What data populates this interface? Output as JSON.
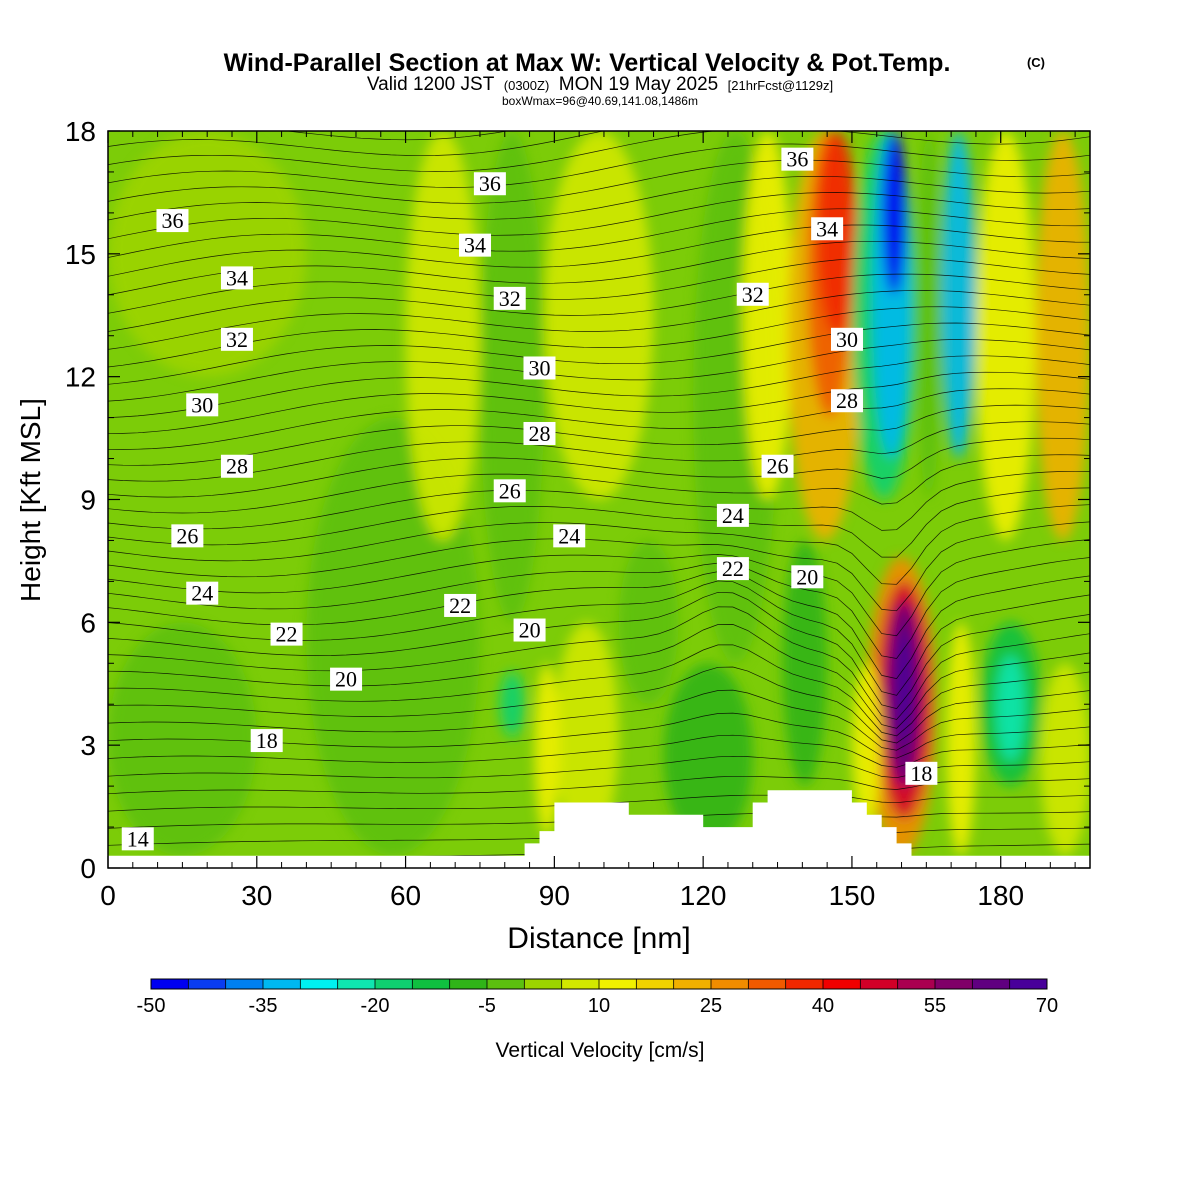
{
  "header": {
    "title": "Wind-Parallel Section at Max W: Vertical Velocity & Pot.Temp.",
    "title_mark": "(C)",
    "valid_prefix": "Valid 1200 JST",
    "valid_zulu": "(0300Z)",
    "valid_date": "MON 19 May 2025",
    "forecast_tag": "[21hrFcst@1129z]",
    "box_info": "boxWmax=96@40.69,141.08,1486m"
  },
  "chart_data": {
    "type": "heatmap",
    "title": "Wind-Parallel Section at Max W: Vertical Velocity & Pot.Temp.",
    "xlabel": "Distance [nm]",
    "ylabel": "Height [Kft MSL]",
    "xlim": [
      0,
      198
    ],
    "ylim": [
      0,
      18
    ],
    "x_ticks": [
      "0",
      "30",
      "60",
      "90",
      "120",
      "150",
      "180"
    ],
    "x_tick_values": [
      0,
      30,
      60,
      90,
      120,
      150,
      180
    ],
    "y_ticks": [
      "0",
      "3",
      "6",
      "9",
      "12",
      "15",
      "18"
    ],
    "y_tick_values": [
      0,
      3,
      6,
      9,
      12,
      15,
      18
    ],
    "colorbar": {
      "label": "Vertical Velocity [cm/s]",
      "min": -50,
      "max": 70,
      "step": 5,
      "tick_labels": [
        "-50",
        "-35",
        "-20",
        "-5",
        "10",
        "25",
        "40",
        "55",
        "70"
      ],
      "tick_values": [
        -50,
        -35,
        -20,
        -5,
        10,
        25,
        40,
        55,
        70
      ],
      "colors": [
        "#0000f0",
        "#0a3cf0",
        "#0080f0",
        "#00b8f0",
        "#00f0f0",
        "#10e6b0",
        "#10d070",
        "#10c040",
        "#30b418",
        "#5cc010",
        "#9cd400",
        "#d2e800",
        "#f0f000",
        "#f0d200",
        "#f0b000",
        "#f08c00",
        "#f05a00",
        "#f02800",
        "#f00000",
        "#d20028",
        "#aa0050",
        "#800068",
        "#600080",
        "#48009a"
      ]
    },
    "wind_velocity_features": [
      {
        "name": "downdraft core",
        "x": [
          154,
          173
        ],
        "z": [
          8.5,
          18
        ],
        "w_min": -50
      },
      {
        "name": "updraft core",
        "x": [
          153,
          167
        ],
        "z": [
          0.3,
          7.6
        ],
        "w_max": 70
      },
      {
        "name": "updraft band",
        "x": [
          137,
          152
        ],
        "z": [
          9,
          18
        ],
        "w_max": 35
      },
      {
        "name": "downdraft pocket",
        "x": [
          176,
          188
        ],
        "z": [
          2,
          6
        ],
        "w_min": -25
      },
      {
        "name": "downdraft pocket",
        "x": [
          79,
          84
        ],
        "z": [
          3.2,
          4.8
        ],
        "w_min": -20
      }
    ],
    "terrain": {
      "x": [
        0,
        84,
        84,
        87,
        87,
        90,
        90,
        105,
        105,
        120,
        120,
        130,
        130,
        133,
        133,
        150,
        150,
        153,
        153,
        156,
        156,
        159,
        159,
        162,
        162,
        198
      ],
      "z": [
        0.3,
        0.3,
        0.6,
        0.6,
        0.9,
        0.9,
        1.6,
        1.6,
        1.3,
        1.3,
        1.0,
        1.0,
        1.6,
        1.6,
        1.9,
        1.9,
        1.6,
        1.6,
        1.3,
        1.3,
        1.0,
        1.0,
        0.6,
        0.6,
        0.3,
        0.3
      ]
    },
    "potential_temperature_labels": [
      {
        "text": "14",
        "x": 6,
        "z": 0.7
      },
      {
        "text": "18",
        "x": 32,
        "z": 3.1
      },
      {
        "text": "20",
        "x": 48,
        "z": 4.6
      },
      {
        "text": "22",
        "x": 36,
        "z": 5.7
      },
      {
        "text": "24",
        "x": 19,
        "z": 6.7
      },
      {
        "text": "26",
        "x": 16,
        "z": 8.1
      },
      {
        "text": "28",
        "x": 26,
        "z": 9.8
      },
      {
        "text": "30",
        "x": 19,
        "z": 11.3
      },
      {
        "text": "32",
        "x": 26,
        "z": 12.9
      },
      {
        "text": "34",
        "x": 26,
        "z": 14.4
      },
      {
        "text": "36",
        "x": 13,
        "z": 15.8
      },
      {
        "text": "36",
        "x": 77,
        "z": 16.7
      },
      {
        "text": "34",
        "x": 74,
        "z": 15.2
      },
      {
        "text": "32",
        "x": 81,
        "z": 13.9
      },
      {
        "text": "30",
        "x": 87,
        "z": 12.2
      },
      {
        "text": "28",
        "x": 87,
        "z": 10.6
      },
      {
        "text": "26",
        "x": 81,
        "z": 9.2
      },
      {
        "text": "24",
        "x": 93,
        "z": 8.1
      },
      {
        "text": "22",
        "x": 71,
        "z": 6.4
      },
      {
        "text": "20",
        "x": 85,
        "z": 5.8
      },
      {
        "text": "36",
        "x": 139,
        "z": 17.3
      },
      {
        "text": "34",
        "x": 145,
        "z": 15.6
      },
      {
        "text": "32",
        "x": 130,
        "z": 14.0
      },
      {
        "text": "30",
        "x": 149,
        "z": 12.9
      },
      {
        "text": "28",
        "x": 149,
        "z": 11.4
      },
      {
        "text": "26",
        "x": 135,
        "z": 9.8
      },
      {
        "text": "24",
        "x": 126,
        "z": 8.6
      },
      {
        "text": "22",
        "x": 126,
        "z": 7.3
      },
      {
        "text": "20",
        "x": 141,
        "z": 7.1
      },
      {
        "text": "18",
        "x": 164,
        "z": 2.3
      }
    ]
  }
}
